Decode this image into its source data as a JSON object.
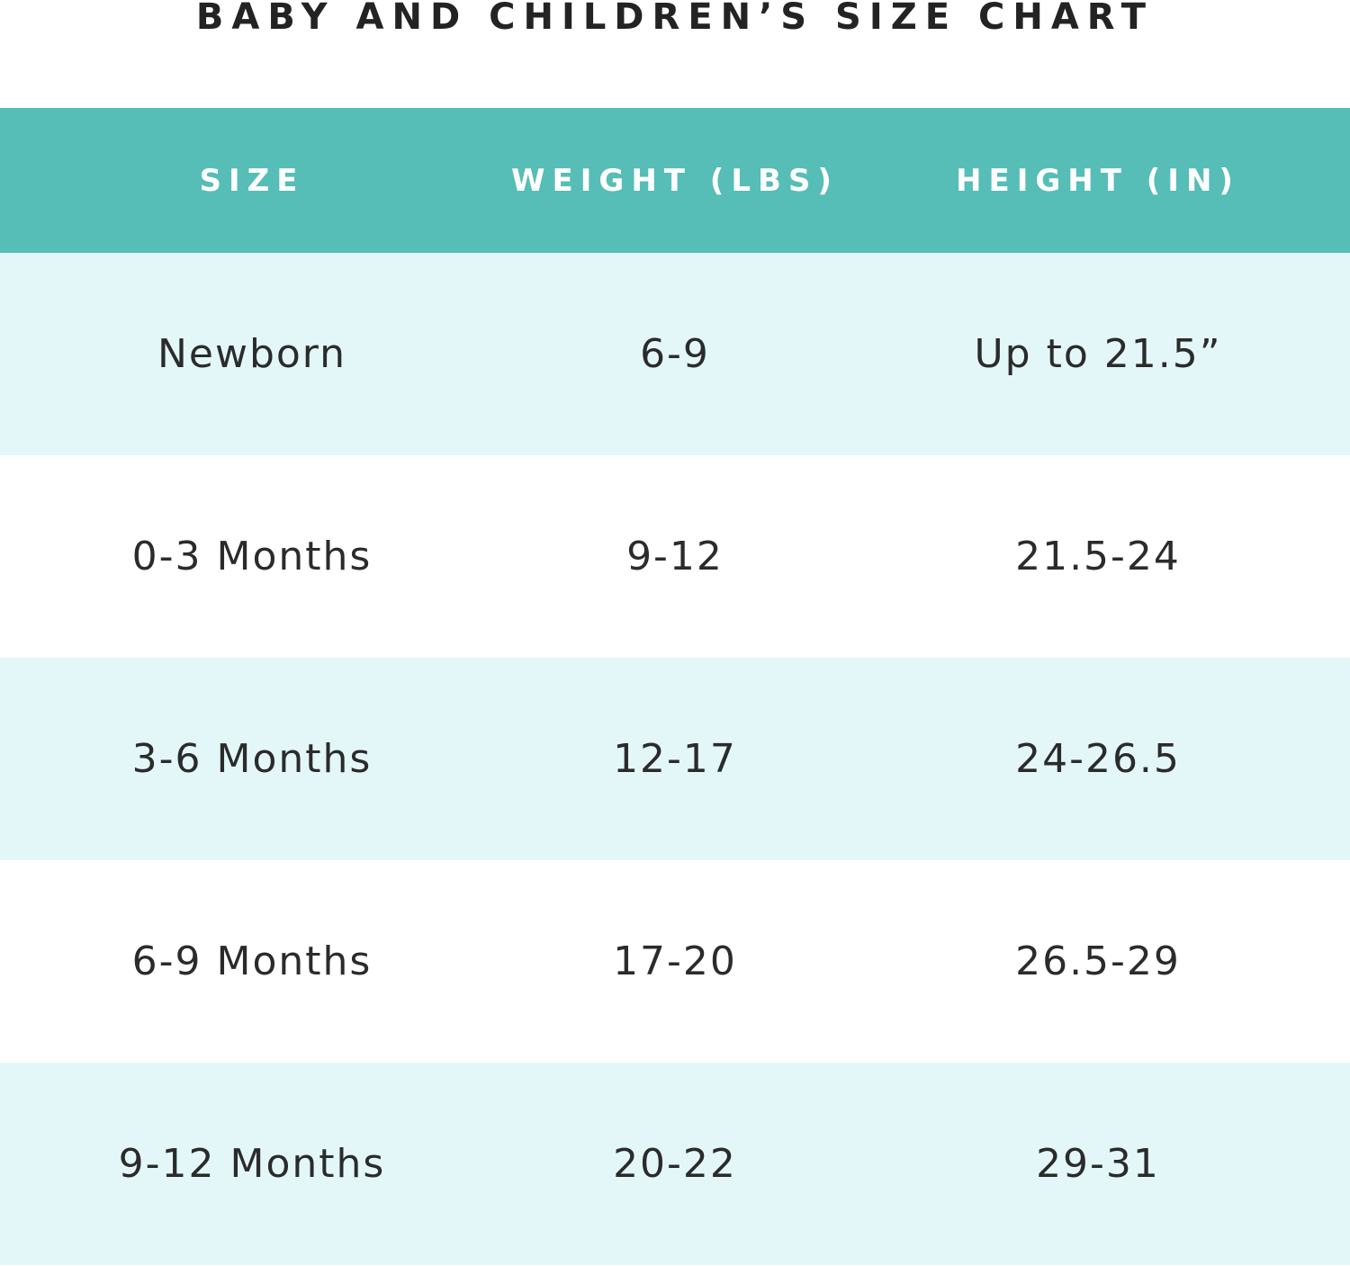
{
  "title": "BABY AND CHILDREN’S SIZE CHART",
  "colors": {
    "header_bg": "#56bdb7",
    "header_text": "#ffffff",
    "row_shaded": "#e3f7f9",
    "row_plain": "#ffffff",
    "text": "#2b2b2b"
  },
  "table": {
    "headers": [
      "SIZE",
      "WEIGHT (LBS)",
      "HEIGHT (IN)"
    ],
    "rows": [
      [
        "Newborn",
        "6-9",
        "Up to 21.5”"
      ],
      [
        "0-3 Months",
        "9-12",
        "21.5-24"
      ],
      [
        "3-6 Months",
        "12-17",
        "24-26.5"
      ],
      [
        "6-9 Months",
        "17-20",
        "26.5-29"
      ],
      [
        "9-12 Months",
        "20-22",
        "29-31"
      ]
    ]
  }
}
